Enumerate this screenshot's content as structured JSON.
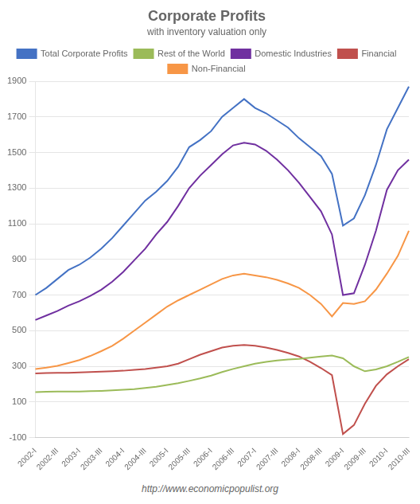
{
  "chart_data": {
    "type": "line",
    "title": "Corporate Profits",
    "subtitle": "with inventory valuation only",
    "annotation": "http://www.economicpopulist.org",
    "categories": [
      "2002-I",
      null,
      "2002-III",
      null,
      "2003-I",
      null,
      "2003-III",
      null,
      "2004-I",
      null,
      "2004-III",
      null,
      "2005-I",
      null,
      "2005-III",
      null,
      "2006-I",
      null,
      "2006-III",
      null,
      "2007-I",
      null,
      "2007-III",
      null,
      "2008-I",
      null,
      "2008-III",
      null,
      "2009-I",
      null,
      "2009-III",
      null,
      "2010-I",
      null,
      "2010-III"
    ],
    "series": [
      {
        "name": "Total Corporate Profits",
        "color": "#4472C4",
        "values": [
          700,
          740,
          790,
          840,
          870,
          910,
          960,
          1020,
          1090,
          1160,
          1230,
          1280,
          1340,
          1420,
          1530,
          1570,
          1620,
          1700,
          1750,
          1800,
          1750,
          1720,
          1680,
          1640,
          1580,
          1530,
          1480,
          1380,
          1090,
          1130,
          1260,
          1430,
          1630,
          1750,
          1870
        ]
      },
      {
        "name": "Rest of the World",
        "color": "#9BBB59",
        "values": [
          155,
          157,
          158,
          158,
          158,
          160,
          162,
          165,
          168,
          172,
          178,
          185,
          195,
          205,
          218,
          232,
          248,
          268,
          285,
          300,
          315,
          325,
          332,
          338,
          342,
          348,
          355,
          360,
          345,
          300,
          272,
          282,
          300,
          325,
          352
        ]
      },
      {
        "name": "Domestic Industries",
        "color": "#7030A0",
        "values": [
          560,
          585,
          610,
          640,
          665,
          695,
          730,
          775,
          830,
          895,
          960,
          1040,
          1110,
          1200,
          1300,
          1370,
          1430,
          1490,
          1540,
          1555,
          1545,
          1510,
          1460,
          1400,
          1330,
          1250,
          1170,
          1040,
          700,
          710,
          870,
          1060,
          1290,
          1400,
          1460
        ]
      },
      {
        "name": "Financial",
        "color": "#C0504D",
        "values": [
          260,
          262,
          263,
          263,
          265,
          268,
          270,
          272,
          275,
          280,
          285,
          292,
          300,
          315,
          340,
          365,
          385,
          405,
          415,
          420,
          415,
          405,
          392,
          375,
          355,
          325,
          290,
          250,
          -80,
          -30,
          90,
          190,
          255,
          300,
          340
        ]
      },
      {
        "name": "Non-Financial",
        "color": "#F79646",
        "values": [
          285,
          292,
          302,
          318,
          335,
          358,
          385,
          415,
          455,
          500,
          545,
          590,
          635,
          670,
          700,
          730,
          760,
          790,
          810,
          820,
          810,
          800,
          785,
          765,
          740,
          700,
          650,
          580,
          655,
          650,
          665,
          730,
          820,
          920,
          1060
        ]
      }
    ],
    "ylim": [
      -100,
      1900
    ],
    "yticks": [
      -100,
      100,
      300,
      500,
      700,
      900,
      1100,
      1300,
      1500,
      1700,
      1900
    ],
    "grid": "y",
    "legend": "top"
  }
}
